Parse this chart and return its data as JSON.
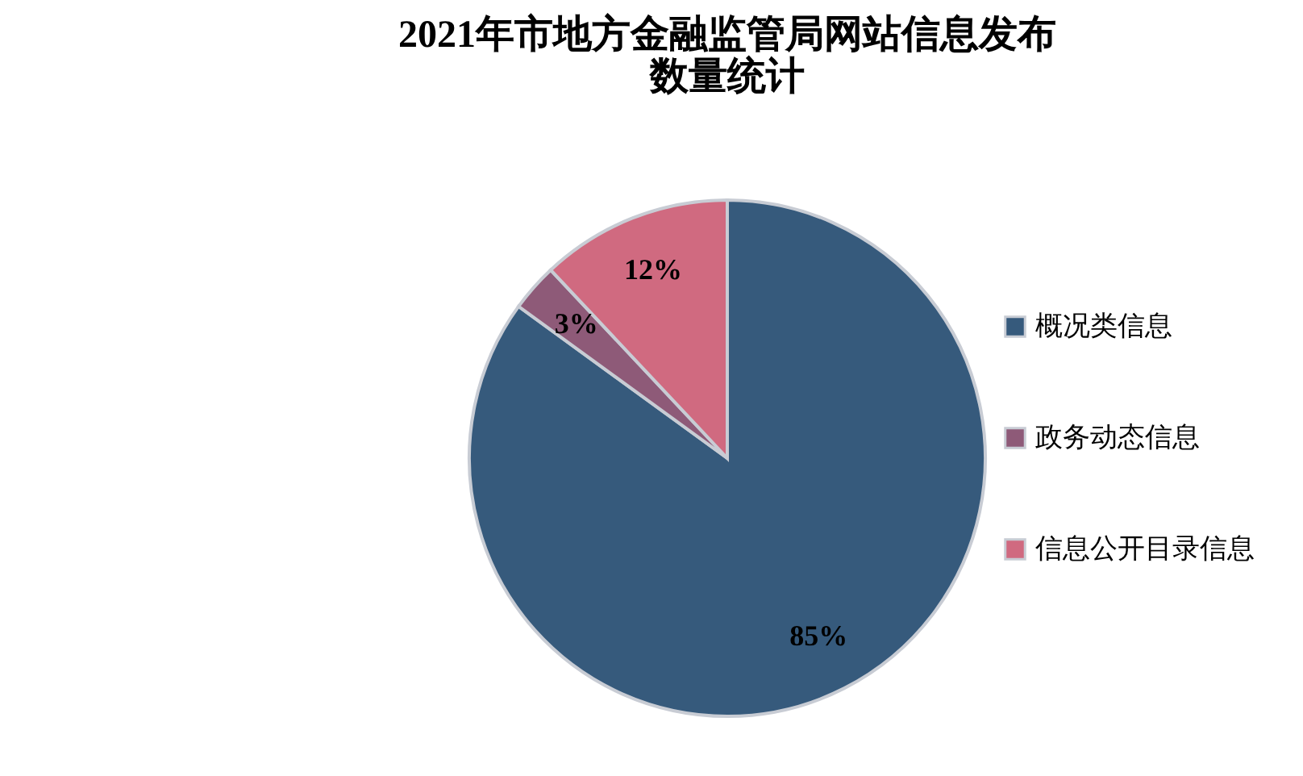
{
  "chart_data": {
    "type": "pie",
    "title": "2021年市地方金融监管局网站信息发布数量统计",
    "categories": [
      "概况类信息",
      "政务动态信息",
      "信息公开目录信息"
    ],
    "values": [
      85,
      3,
      12
    ],
    "colors": [
      "#365a7c",
      "#8e5a78",
      "#d06a80"
    ],
    "value_labels": [
      "85%",
      "3%",
      "12%"
    ],
    "legend": "right"
  }
}
